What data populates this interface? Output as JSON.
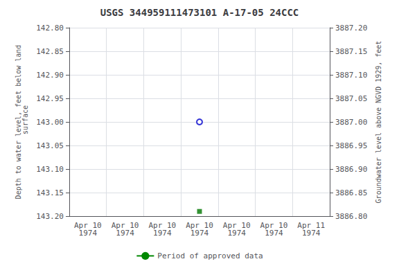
{
  "chart_data": {
    "type": "scatter",
    "title": "USGS 344959111473101 A-17-05 24CCC",
    "ylabel": "Depth to water level, feet below land\n surface",
    "y2label": "Groundwater level above NGVD 1929, feet",
    "categories": [
      "Apr 10\n1974",
      "Apr 10\n1974",
      "Apr 10\n1974",
      "Apr 10\n1974",
      "Apr 10\n1974",
      "Apr 10\n1974",
      "Apr 11\n1974"
    ],
    "series": [
      {
        "type": "scatter",
        "marker": "open_circle",
        "color": "#0000cc",
        "values": [
          null,
          null,
          null,
          143.0,
          null,
          null,
          null
        ]
      },
      {
        "type": "scatter",
        "marker": "square",
        "color": "#007700",
        "values": [
          null,
          null,
          null,
          143.19,
          null,
          null,
          null
        ]
      },
      {
        "name": "Period of approved data",
        "type": "line",
        "color": "#008800",
        "values": [
          null,
          null,
          null,
          null,
          null,
          null,
          null
        ]
      }
    ],
    "ylim": [
      143.2,
      142.8
    ],
    "yticks": [
      {
        "value": 142.8,
        "label": "142.80"
      },
      {
        "value": 142.85,
        "label": "142.85"
      },
      {
        "value": 142.9,
        "label": "142.90"
      },
      {
        "value": 142.95,
        "label": "142.95"
      },
      {
        "value": 143.0,
        "label": "143.00"
      },
      {
        "value": 143.05,
        "label": "143.05"
      },
      {
        "value": 143.1,
        "label": "143.10"
      },
      {
        "value": 143.15,
        "label": "143.15"
      },
      {
        "value": 143.2,
        "label": "143.20"
      }
    ],
    "y2lim": [
      3886.8,
      3887.2
    ],
    "y2ticks": [
      {
        "value": 3887.2,
        "label": "3887.20"
      },
      {
        "value": 3887.15,
        "label": "3887.15"
      },
      {
        "value": 3887.1,
        "label": "3887.10"
      },
      {
        "value": 3887.05,
        "label": "3887.05"
      },
      {
        "value": 3887.0,
        "label": "3887.00"
      },
      {
        "value": 3886.95,
        "label": "3886.95"
      },
      {
        "value": 3886.9,
        "label": "3886.90"
      },
      {
        "value": 3886.85,
        "label": "3886.85"
      },
      {
        "value": 3886.8,
        "label": "3886.80"
      }
    ],
    "grid": true,
    "legend": "bottom"
  }
}
